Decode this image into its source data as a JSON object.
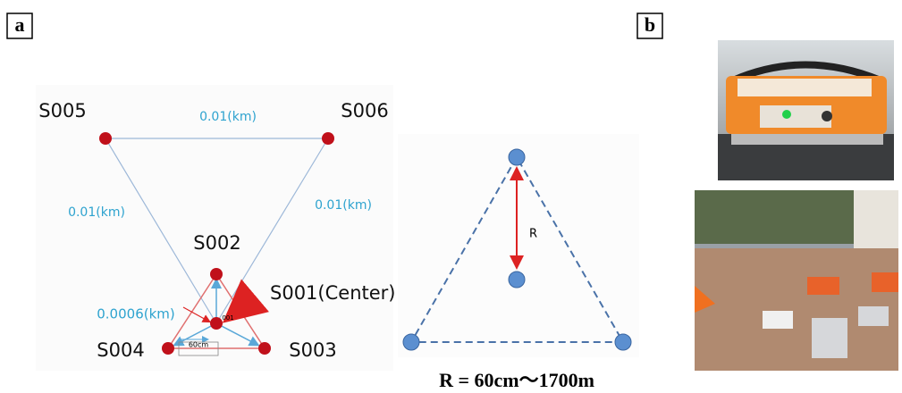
{
  "panels": [
    {
      "label": "a",
      "network": {
        "nodes": [
          "S005",
          "S006",
          "S002",
          "S001(Center)",
          "S004",
          "S003"
        ],
        "edge_labels": [
          "0.01(km)",
          "0.01(km)",
          "0.01(km)"
        ],
        "center_distance": "0.0006(km)",
        "scale_label": "60cm",
        "center_tag": "001"
      },
      "schematic": {
        "radius_label": "R",
        "caption": "R = 60cm～1700m"
      }
    },
    {
      "label": "b"
    }
  ]
}
